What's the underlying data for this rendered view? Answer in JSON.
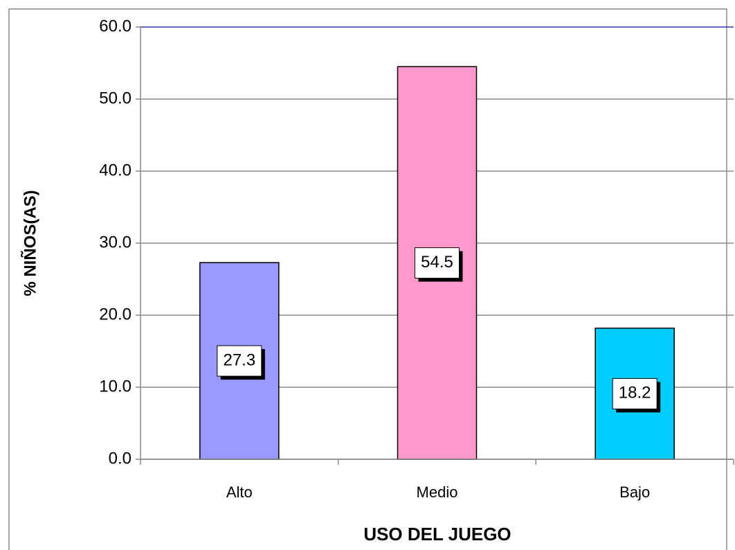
{
  "chart_data": {
    "type": "bar",
    "xlabel": "USO DEL JUEGO",
    "ylabel": "% NIÑOS(AS)",
    "categories": [
      "Alto",
      "Medio",
      "Bajo"
    ],
    "values": [
      27.3,
      54.5,
      18.2
    ],
    "colors": [
      "#9999ff",
      "#ff99cc",
      "#00ccff"
    ],
    "ylim": [
      0,
      60
    ],
    "yticks": [
      {
        "value": 0,
        "label": "0.0"
      },
      {
        "value": 10,
        "label": "10.0"
      },
      {
        "value": 20,
        "label": "20.0"
      },
      {
        "value": 30,
        "label": "30.0"
      },
      {
        "value": 40,
        "label": "40.0"
      },
      {
        "value": 50,
        "label": "50.0"
      },
      {
        "value": 60,
        "label": "60.0"
      }
    ],
    "grid": true
  }
}
